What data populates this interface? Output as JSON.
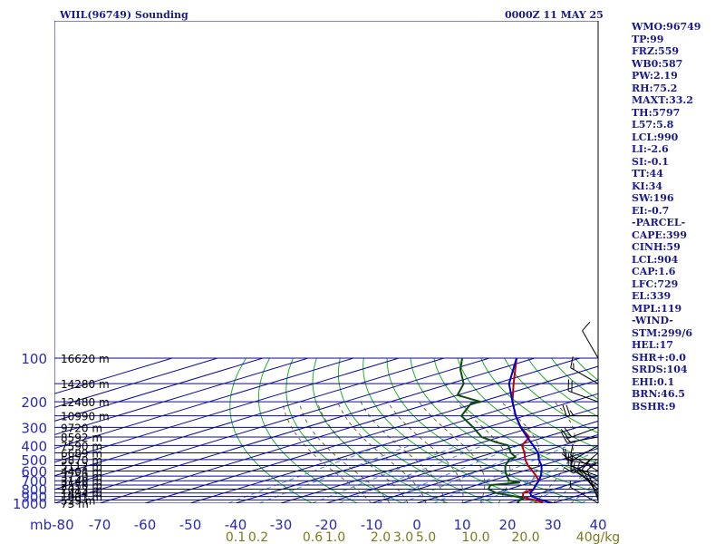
{
  "header": {
    "station": "WIIL(96749) Sounding",
    "time": "0000Z 11 MAY 25"
  },
  "colors": {
    "background": "#ffffff",
    "isobar": "#0a0a9a",
    "isotherm": "#0a0a9a",
    "dry_adiabat": "#23b023",
    "moist_adiabat": "#6b6b2a",
    "mixing_ratio": "#4a8ad8",
    "temperature": "#c00000",
    "dewpoint": "#0b4d0b",
    "parcel": "#0000c8",
    "wind": "#000000",
    "text": "#1a1a8c"
  },
  "chart_data": {
    "type": "line",
    "title": "WIIL(96749) Sounding",
    "subtitle": "0000Z 11 MAY 25",
    "xlabel": "",
    "ylabel": "mb",
    "pressure_levels": [
      100,
      200,
      300,
      400,
      500,
      600,
      700,
      800,
      900,
      1000
    ],
    "pressure_tick_labels": [
      "100",
      "200",
      "300",
      "400",
      "500",
      "600",
      "700",
      "800",
      "900",
      "1000"
    ],
    "height_labels": [
      {
        "p": 100,
        "label": "16620 m"
      },
      {
        "p": 150,
        "label": "14280 m"
      },
      {
        "p": 200,
        "label": "12480 m"
      },
      {
        "p": 250,
        "label": "10990 m"
      },
      {
        "p": 300,
        "label": "9720 m"
      },
      {
        "p": 350,
        "label": "8592 m"
      },
      {
        "p": 400,
        "label": "7590 m"
      },
      {
        "p": 450,
        "label": "6689 m"
      },
      {
        "p": 500,
        "label": "5870 m"
      },
      {
        "p": 550,
        "label": "5112 m"
      },
      {
        "p": 600,
        "label": "4404 m"
      },
      {
        "p": 650,
        "label": "3750 m"
      },
      {
        "p": 700,
        "label": "3140 m"
      },
      {
        "p": 750,
        "label": "2550 m"
      },
      {
        "p": 800,
        "label": "2013 m"
      },
      {
        "p": 850,
        "label": "1494 m"
      },
      {
        "p": 900,
        "label": "1001 m"
      },
      {
        "p": 950,
        "label": "529 m"
      },
      {
        "p": 1000,
        "label": "73 m"
      }
    ],
    "temperature_ticks": [
      -70,
      -60,
      -50,
      -40,
      -30,
      -20,
      -10,
      0,
      10,
      20,
      30,
      40
    ],
    "temperature_tick_labels": [
      "-70",
      "-60",
      "-50",
      "-40",
      "-30",
      "-20",
      "-10",
      "0",
      "10",
      "20",
      "30",
      "40"
    ],
    "origin_tick_label": "mb-80",
    "xlim": [
      -80,
      40
    ],
    "ylim": [
      1000,
      100
    ],
    "mixing_ratio_labels": [
      {
        "t": -40,
        "label": "0.1"
      },
      {
        "t": -35,
        "label": "0.2"
      },
      {
        "t": -23,
        "label": "0.6"
      },
      {
        "t": -18,
        "label": "1.0"
      },
      {
        "t": -8,
        "label": "2.0"
      },
      {
        "t": -3,
        "label": "3.0"
      },
      {
        "t": 2,
        "label": "5.0"
      },
      {
        "t": 13,
        "label": "10.0"
      },
      {
        "t": 24,
        "label": "20.0"
      },
      {
        "t": 40,
        "label": "40g/kg"
      }
    ],
    "grid": true,
    "series": [
      {
        "key": "temperature",
        "points": [
          [
            1000,
            27.5
          ],
          [
            985,
            27.0
          ],
          [
            950,
            23.5
          ],
          [
            925,
            20.5
          ],
          [
            900,
            18.5
          ],
          [
            850,
            16.0
          ],
          [
            800,
            15.5
          ],
          [
            750,
            13.0
          ],
          [
            700,
            10.5
          ],
          [
            650,
            6.5
          ],
          [
            600,
            2.0
          ],
          [
            550,
            -3.0
          ],
          [
            500,
            -8.0
          ],
          [
            450,
            -13.0
          ],
          [
            400,
            -19.0
          ],
          [
            355,
            -23.0
          ],
          [
            350,
            -23.5
          ],
          [
            300,
            -32.5
          ],
          [
            250,
            -42.0
          ],
          [
            200,
            -53.0
          ],
          [
            150,
            -66.0
          ],
          [
            100,
            -84.0
          ]
        ]
      },
      {
        "key": "dewpoint",
        "points": [
          [
            1000,
            22.5
          ],
          [
            985,
            21.5
          ],
          [
            950,
            20.5
          ],
          [
            925,
            20.0
          ],
          [
            900,
            17.0
          ],
          [
            850,
            10.0
          ],
          [
            800,
            5.5
          ],
          [
            750,
            3.0
          ],
          [
            720,
            7.5
          ],
          [
            700,
            4.0
          ],
          [
            650,
            0.0
          ],
          [
            600,
            -4.0
          ],
          [
            550,
            -8.0
          ],
          [
            500,
            -11.5
          ],
          [
            480,
            -12.0
          ],
          [
            450,
            -16.0
          ],
          [
            400,
            -22.0
          ],
          [
            380,
            -27.0
          ],
          [
            350,
            -34.0
          ],
          [
            300,
            -43.0
          ],
          [
            250,
            -54.0
          ],
          [
            205,
            -61.0
          ],
          [
            200,
            -60.0
          ],
          [
            180,
            -70.0
          ],
          [
            150,
            -77.0
          ],
          [
            120,
            -88.0
          ],
          [
            100,
            -96.0
          ]
        ]
      },
      {
        "key": "parcel",
        "points": [
          [
            1000,
            30.0
          ],
          [
            950,
            25.0
          ],
          [
            900,
            20.5
          ],
          [
            850,
            17.5
          ],
          [
            800,
            15.5
          ],
          [
            750,
            13.0
          ],
          [
            700,
            10.5
          ],
          [
            650,
            7.5
          ],
          [
            600,
            4.0
          ],
          [
            550,
            0.0
          ],
          [
            500,
            -5.0
          ],
          [
            450,
            -10.0
          ],
          [
            400,
            -16.5
          ],
          [
            350,
            -24.0
          ],
          [
            300,
            -32.5
          ],
          [
            250,
            -42.0
          ],
          [
            200,
            -53.0
          ],
          [
            150,
            -67.0
          ],
          [
            100,
            -84.0
          ]
        ]
      }
    ],
    "wind_barbs": [
      {
        "p": 100,
        "dir": 330,
        "kt": 12
      },
      {
        "p": 150,
        "dir": 300,
        "kt": 15
      },
      {
        "p": 200,
        "dir": 290,
        "kt": 20
      },
      {
        "p": 250,
        "dir": 270,
        "kt": 25
      },
      {
        "p": 300,
        "dir": 250,
        "kt": 20
      },
      {
        "p": 350,
        "dir": 260,
        "kt": 15
      },
      {
        "p": 400,
        "dir": 240,
        "kt": 15
      },
      {
        "p": 450,
        "dir": 230,
        "kt": 12
      },
      {
        "p": 500,
        "dir": 270,
        "kt": 10
      },
      {
        "p": 550,
        "dir": 280,
        "kt": 10
      },
      {
        "p": 600,
        "dir": 300,
        "kt": 10
      },
      {
        "p": 650,
        "dir": 290,
        "kt": 12
      },
      {
        "p": 700,
        "dir": 300,
        "kt": 10
      },
      {
        "p": 750,
        "dir": 300,
        "kt": 10
      },
      {
        "p": 800,
        "dir": 310,
        "kt": 5
      },
      {
        "p": 850,
        "dir": 320,
        "kt": 5
      },
      {
        "p": 900,
        "dir": 330,
        "kt": 10
      },
      {
        "p": 950,
        "dir": 340,
        "kt": 10
      },
      {
        "p": 1000,
        "dir": 300,
        "kt": 5
      }
    ]
  },
  "stats": [
    "WMO:96749",
    "TP:99",
    "FRZ:559",
    "WB0:587",
    "PW:2.19",
    "RH:75.2",
    "MAXT:33.2",
    "TH:5797",
    "L57:5.8",
    "LCL:990",
    "LI:-2.6",
    "SI:-0.1",
    "TT:44",
    "KI:34",
    "SW:196",
    "EI:-0.7",
    "-PARCEL-",
    "CAPE:399",
    "CINH:59",
    "LCL:904",
    "CAP:1.6",
    "LFC:729",
    "EL:339",
    "MPL:119",
    "-WIND-",
    "STM:299/6",
    "HEL:17",
    "SHR+:0.0",
    "SRDS:104",
    "EHI:0.1",
    "BRN:46.5",
    "BSHR:9"
  ]
}
